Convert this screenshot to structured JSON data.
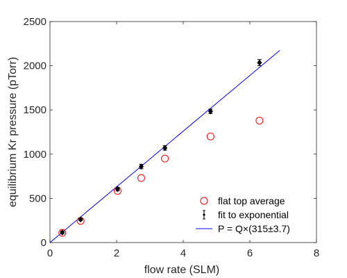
{
  "chart_data": {
    "type": "scatter",
    "title": "",
    "xlabel": "flow rate (SLM)",
    "ylabel": "equilibrium Kr pressure (pTorr)",
    "xlim": [
      0,
      8
    ],
    "ylim": [
      0,
      2500
    ],
    "xticks": [
      "0",
      "2",
      "4",
      "6",
      "8"
    ],
    "yticks": [
      "0",
      "500",
      "1000",
      "1500",
      "2000",
      "2500"
    ],
    "grid": false,
    "legend_position": "bottom-right",
    "series": [
      {
        "name": "flat top average",
        "kind": "open-circle",
        "color": "#ff0000",
        "points": [
          {
            "x": 0.37,
            "y": 110
          },
          {
            "x": 0.92,
            "y": 245
          },
          {
            "x": 2.03,
            "y": 585
          },
          {
            "x": 2.74,
            "y": 730
          },
          {
            "x": 3.45,
            "y": 950
          },
          {
            "x": 4.82,
            "y": 1200
          },
          {
            "x": 6.29,
            "y": 1380
          }
        ]
      },
      {
        "name": "fit to exponential",
        "kind": "errorbar",
        "color": "#000000",
        "points": [
          {
            "x": 0.37,
            "y": 115,
            "err": 15
          },
          {
            "x": 0.92,
            "y": 262,
            "err": 15
          },
          {
            "x": 2.03,
            "y": 605,
            "err": 20
          },
          {
            "x": 2.74,
            "y": 860,
            "err": 25
          },
          {
            "x": 3.45,
            "y": 1070,
            "err": 25
          },
          {
            "x": 4.82,
            "y": 1485,
            "err": 25
          },
          {
            "x": 6.29,
            "y": 2035,
            "err": 35
          }
        ]
      },
      {
        "name": "P = Q×(315±3.7)",
        "kind": "line",
        "color": "#0000ff",
        "points": [
          {
            "x": 0,
            "y": 0
          },
          {
            "x": 6.9,
            "y": 2173.5
          }
        ]
      }
    ]
  }
}
